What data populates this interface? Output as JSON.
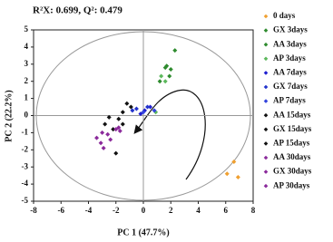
{
  "chart_data": {
    "type": "scatter",
    "title": "R²X: 0.699, Q²: 0.479",
    "x_label": "PC 1 (47.7%)",
    "y_label": "PC 2 (22.2%)",
    "xlim": [
      -8,
      8
    ],
    "ylim": [
      -5,
      5
    ],
    "xticks": [
      -8,
      -6,
      -4,
      -2,
      0,
      2,
      4,
      6,
      8
    ],
    "yticks": [
      -5,
      -4,
      -3,
      -2,
      -1,
      0,
      1,
      2,
      3,
      4,
      5
    ],
    "legend": "right",
    "series": [
      {
        "name": "0 days",
        "color": "#f0a030",
        "x": [
          6.1,
          6.6,
          6.9
        ],
        "y": [
          -3.4,
          -2.7,
          -3.6
        ]
      },
      {
        "name": "GX 3days",
        "color": "#2e8b2e",
        "x": [
          2.3,
          1.6,
          1.9
        ],
        "y": [
          3.8,
          2.8,
          2.3
        ]
      },
      {
        "name": "AA 3days",
        "color": "#2e8b2e",
        "x": [
          2.0,
          1.7,
          1.2
        ],
        "y": [
          2.7,
          2.9,
          2.0
        ]
      },
      {
        "name": "AP 3days",
        "color": "#5cb85c",
        "x": [
          1.3,
          1.6,
          0.9
        ],
        "y": [
          2.3,
          2.0,
          0.2
        ]
      },
      {
        "name": "AA 7days",
        "color": "#1f1fd0",
        "x": [
          0.1,
          -0.2,
          0.5
        ],
        "y": [
          0.3,
          0.1,
          0.5
        ]
      },
      {
        "name": "GX 7days",
        "color": "#2233cc",
        "x": [
          -0.5,
          0.3,
          -0.8
        ],
        "y": [
          0.4,
          0.5,
          0.3
        ]
      },
      {
        "name": "AP 7days",
        "color": "#3344dd",
        "x": [
          0.8,
          0.0
        ],
        "y": [
          0.3,
          0.2
        ]
      },
      {
        "name": "AA 15days",
        "color": "#111111",
        "x": [
          -2.5,
          -1.5,
          -2.2
        ],
        "y": [
          -0.1,
          -0.5,
          -0.8
        ]
      },
      {
        "name": "GX 15days",
        "color": "#111111",
        "x": [
          -1.2,
          -1.8,
          -2.0
        ],
        "y": [
          0.7,
          -0.2,
          -2.2
        ]
      },
      {
        "name": "AP 15days",
        "color": "#111111",
        "x": [
          -0.9,
          -1.5,
          -2.8
        ],
        "y": [
          0.5,
          0.2,
          -0.5
        ]
      },
      {
        "name": "AA 30days",
        "color": "#8b2a9b",
        "x": [
          -3.1,
          -2.6,
          -2.0
        ],
        "y": [
          -1.6,
          -1.1,
          -0.8
        ]
      },
      {
        "name": "GX 30days",
        "color": "#8b2a9b",
        "x": [
          -3.4,
          -2.4,
          -1.7
        ],
        "y": [
          -1.3,
          -1.4,
          -0.9
        ]
      },
      {
        "name": "AP 30days",
        "color": "#8b2a9b",
        "x": [
          -3.0,
          -1.8,
          -2.9
        ],
        "y": [
          -1.0,
          -0.7,
          -1.9
        ]
      }
    ]
  }
}
